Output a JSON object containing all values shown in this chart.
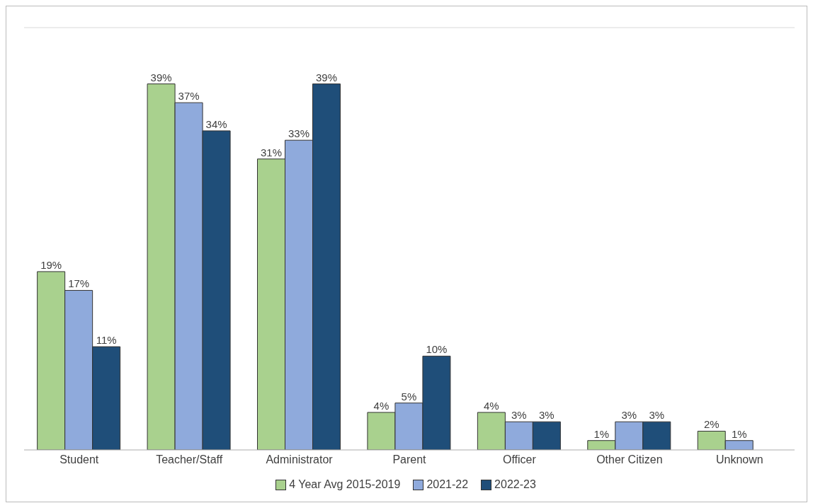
{
  "chart_data": {
    "type": "bar",
    "categories": [
      "Student",
      "Teacher/Staff",
      "Administrator",
      "Parent",
      "Officer",
      "Other Citizen",
      "Unknown"
    ],
    "series": [
      {
        "name": "4 Year Avg 2015-2019",
        "color": "#a9d18e",
        "values": [
          19,
          39,
          31,
          4,
          4,
          1,
          2
        ],
        "value_labels": [
          "19%",
          "39%",
          "31%",
          "4%",
          "4%",
          "1%",
          "2%"
        ]
      },
      {
        "name": "2021-22",
        "color": "#8faadc",
        "values": [
          17,
          37,
          33,
          5,
          3,
          3,
          1
        ],
        "value_labels": [
          "17%",
          "37%",
          "33%",
          "5%",
          "3%",
          "3%",
          "1%"
        ]
      },
      {
        "name": "2022-23",
        "color": "#1f4e79",
        "values": [
          11,
          34,
          39,
          10,
          3,
          3,
          0
        ],
        "value_labels": [
          "11%",
          "34%",
          "39%",
          "10%",
          "3%",
          "3%",
          null
        ]
      }
    ],
    "ylim": [
      0,
      45
    ],
    "tick_labels": "x",
    "grid": "y",
    "legend": "bottom"
  }
}
